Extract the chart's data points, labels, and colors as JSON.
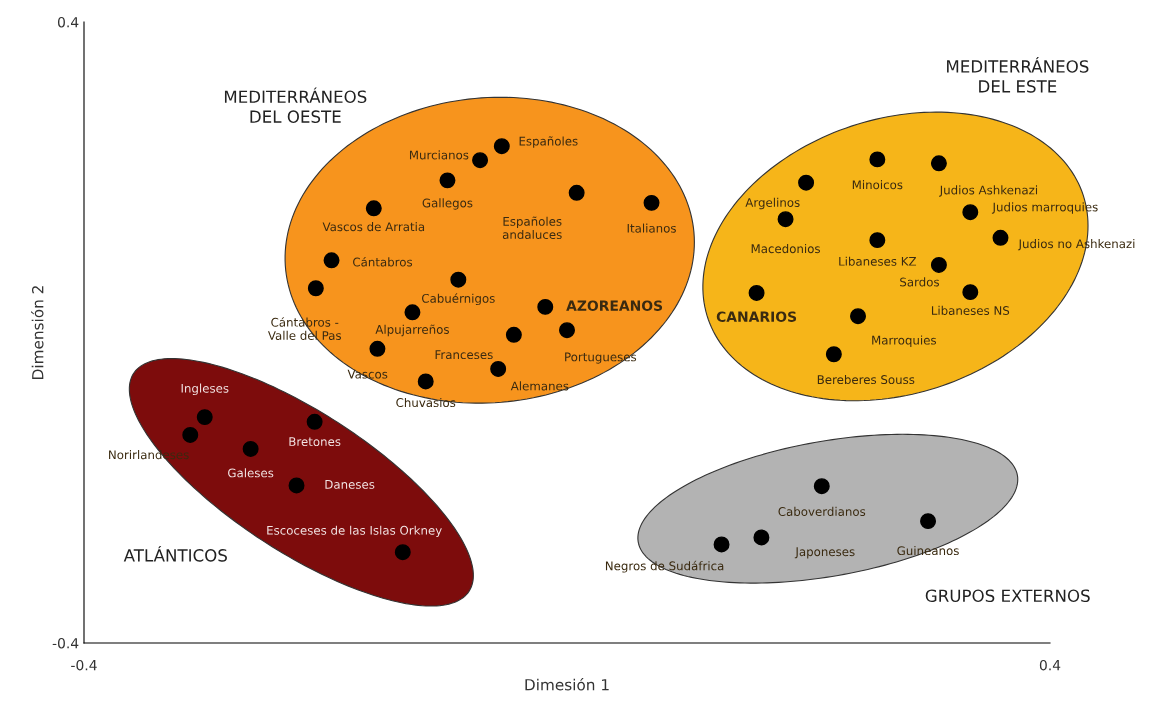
{
  "chart_data": {
    "type": "scatter",
    "xlabel": "Dimesión 1",
    "ylabel": "Dimensión 2",
    "xlim": [
      -0.4,
      0.4
    ],
    "ylim": [
      -0.4,
      0.4
    ],
    "xticks": [
      -0.4,
      0.4
    ],
    "yticks": [
      -0.4,
      0.4
    ],
    "grid": false,
    "legend": false,
    "marker": "circle",
    "x": [
      -0.072,
      -0.054,
      -0.099,
      -0.16,
      0.008,
      0.07,
      -0.195,
      -0.208,
      -0.09,
      -0.128,
      -0.018,
      0.0,
      -0.044,
      -0.157,
      -0.057,
      -0.117,
      -0.3,
      -0.312,
      -0.262,
      -0.209,
      -0.224,
      -0.136,
      0.198,
      0.257,
      0.308,
      0.181,
      0.334,
      0.257,
      0.359,
      0.308,
      0.157,
      0.334,
      0.241,
      0.221,
      0.211,
      0.299,
      0.161,
      0.128
    ],
    "series": [
      {
        "color": "#000000",
        "values": [
          0.222,
          0.24,
          0.196,
          0.16,
          0.18,
          0.167,
          0.093,
          0.057,
          0.068,
          0.026,
          0.033,
          0.003,
          -0.003,
          -0.021,
          -0.047,
          -0.063,
          -0.109,
          -0.132,
          -0.15,
          -0.115,
          -0.197,
          -0.283,
          0.193,
          0.223,
          0.218,
          0.146,
          0.155,
          0.119,
          0.122,
          0.087,
          0.051,
          0.052,
          0.021,
          -0.028,
          -0.198,
          -0.243,
          -0.264,
          -0.273
        ]
      }
    ],
    "annotations": [
      {
        "text": "Murcianos",
        "x": -0.072,
        "y": 0.222
      },
      {
        "text": "Españoles",
        "x": -0.054,
        "y": 0.24
      },
      {
        "text": "Gallegos",
        "x": -0.099,
        "y": 0.196
      },
      {
        "text": "Vascos de Arratia",
        "x": -0.16,
        "y": 0.16
      },
      {
        "text": "Españoles\nandaluces",
        "x": 0.008,
        "y": 0.18
      },
      {
        "text": "Italianos",
        "x": 0.07,
        "y": 0.167
      },
      {
        "text": "Cántabros",
        "x": -0.195,
        "y": 0.093
      },
      {
        "text": "Cántabros -\nValle del Pas",
        "x": -0.208,
        "y": 0.057
      },
      {
        "text": "Cabuérnigos",
        "x": -0.09,
        "y": 0.068
      },
      {
        "text": "Alpujarreños",
        "x": -0.128,
        "y": 0.026
      },
      {
        "text": "AZOREANOS",
        "x": -0.018,
        "y": 0.033
      },
      {
        "text": "Portugueses",
        "x": 0.0,
        "y": 0.003
      },
      {
        "text": "Franceses",
        "x": -0.044,
        "y": -0.003
      },
      {
        "text": "Vascos",
        "x": -0.157,
        "y": -0.021
      },
      {
        "text": "Alemanes",
        "x": -0.057,
        "y": -0.047
      },
      {
        "text": "Chuvasios",
        "x": -0.117,
        "y": -0.063
      },
      {
        "text": "Ingleses",
        "x": -0.3,
        "y": -0.109
      },
      {
        "text": "Norirlandeses",
        "x": -0.312,
        "y": -0.132
      },
      {
        "text": "Galeses",
        "x": -0.262,
        "y": -0.15
      },
      {
        "text": "Bretones",
        "x": -0.209,
        "y": -0.115
      },
      {
        "text": "Daneses",
        "x": -0.224,
        "y": -0.197
      },
      {
        "text": "Escoceses de las Islas Orkney",
        "x": -0.136,
        "y": -0.283
      },
      {
        "text": "Argelinos",
        "x": 0.198,
        "y": 0.193
      },
      {
        "text": "Minoicos",
        "x": 0.257,
        "y": 0.223
      },
      {
        "text": "Judios Ashkenazi",
        "x": 0.308,
        "y": 0.218
      },
      {
        "text": "Macedonios",
        "x": 0.181,
        "y": 0.146
      },
      {
        "text": "Judios marroquies",
        "x": 0.334,
        "y": 0.155
      },
      {
        "text": "Libaneses KZ",
        "x": 0.257,
        "y": 0.119
      },
      {
        "text": "Judios no Ashkenazi",
        "x": 0.359,
        "y": 0.122
      },
      {
        "text": "Sardos",
        "x": 0.308,
        "y": 0.087
      },
      {
        "text": "CANARIOS",
        "x": 0.157,
        "y": 0.051
      },
      {
        "text": "Libaneses NS",
        "x": 0.334,
        "y": 0.052
      },
      {
        "text": "Marroquies",
        "x": 0.241,
        "y": 0.021
      },
      {
        "text": "Bereberes Souss",
        "x": 0.221,
        "y": -0.028
      },
      {
        "text": "Caboverdianos",
        "x": 0.211,
        "y": -0.198
      },
      {
        "text": "Guineanos",
        "x": 0.299,
        "y": -0.243
      },
      {
        "text": "Japoneses",
        "x": 0.161,
        "y": -0.264
      },
      {
        "text": "Negros de Sudáfrica",
        "x": 0.128,
        "y": -0.273
      },
      "MEDITERRÁNEOS\nDEL OESTE",
      "MEDITERRÁNEOS\nDEL ESTE",
      "ATLÁNTICOS",
      "GRUPOS EXTERNOS"
    ]
  }
}
